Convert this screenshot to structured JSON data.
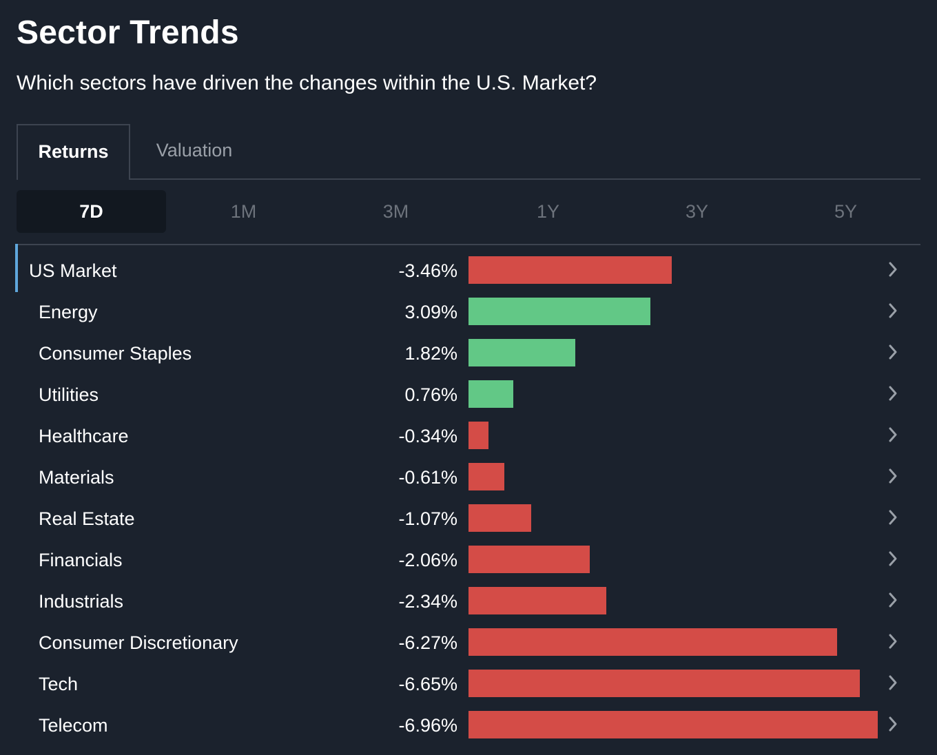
{
  "header": {
    "title": "Sector Trends",
    "subtitle": "Which sectors have driven the changes within the U.S. Market?"
  },
  "tabs": [
    {
      "label": "Returns",
      "active": true
    },
    {
      "label": "Valuation",
      "active": false
    }
  ],
  "periods": [
    {
      "label": "7D",
      "active": true
    },
    {
      "label": "1M",
      "active": false
    },
    {
      "label": "3M",
      "active": false
    },
    {
      "label": "1Y",
      "active": false
    },
    {
      "label": "3Y",
      "active": false
    },
    {
      "label": "5Y",
      "active": false
    }
  ],
  "colors": {
    "background": "#1b222d",
    "positive": "#62c886",
    "negative": "#d44c47",
    "accent": "#5fa7dc",
    "chevron": "#9aa0a8"
  },
  "icons": {
    "row_arrow": "chevron-right-icon"
  },
  "chart_data": {
    "type": "bar",
    "orientation": "horizontal",
    "value_unit": "%",
    "categories": [
      "US Market",
      "Energy",
      "Consumer Staples",
      "Utilities",
      "Healthcare",
      "Materials",
      "Real Estate",
      "Financials",
      "Industrials",
      "Consumer Discretionary",
      "Tech",
      "Telecom"
    ],
    "values": [
      -3.46,
      3.09,
      1.82,
      0.76,
      -0.34,
      -0.61,
      -1.07,
      -2.06,
      -2.34,
      -6.27,
      -6.65,
      -6.96
    ],
    "labels": [
      "-3.46%",
      "3.09%",
      "1.82%",
      "0.76%",
      "-0.34%",
      "-0.61%",
      "-1.07%",
      "-2.06%",
      "-2.34%",
      "-6.27%",
      "-6.65%",
      "-6.96%"
    ],
    "bar_scale_max_abs": 6.96,
    "color_rule": "green for positive, red for negative; bar length = |value|",
    "highlighted_category": "US Market"
  }
}
